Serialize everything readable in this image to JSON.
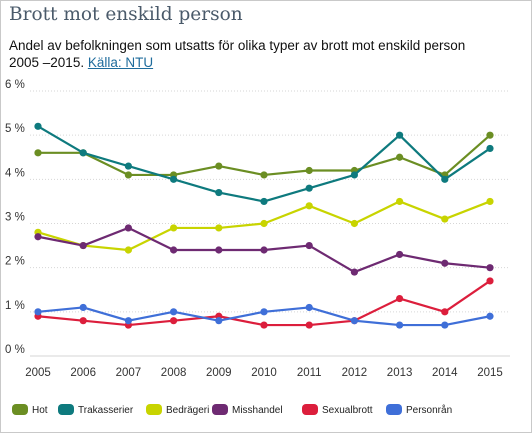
{
  "header": {
    "title": "Brott mot enskild person",
    "subtitle": "Andel av befolkningen som utsatts för olika typer av brott mot enskild person 2005 –2015.",
    "source_link": "Källa: NTU"
  },
  "chart_data": {
    "type": "line",
    "x": [
      2005,
      2006,
      2007,
      2008,
      2009,
      2010,
      2011,
      2012,
      2013,
      2014,
      2015
    ],
    "ylim": [
      0,
      6
    ],
    "yticks": [
      "0 %",
      "1 %",
      "2 %",
      "3 %",
      "4 %",
      "5 %",
      "6 %"
    ],
    "grid": true,
    "legend_position": "bottom",
    "series": [
      {
        "name": "Hot",
        "color": "#6b8e23",
        "values": [
          4.6,
          4.6,
          4.1,
          4.1,
          4.3,
          4.1,
          4.2,
          4.2,
          4.5,
          4.1,
          5.0
        ]
      },
      {
        "name": "Trakasserier",
        "color": "#0e7a7e",
        "values": [
          5.2,
          4.6,
          4.3,
          4.0,
          3.7,
          3.5,
          3.8,
          4.1,
          5.0,
          4.0,
          4.7
        ]
      },
      {
        "name": "Bedrägeri",
        "color": "#c8d400",
        "values": [
          2.8,
          2.5,
          2.4,
          2.9,
          2.9,
          3.0,
          3.4,
          3.0,
          3.5,
          3.1,
          3.5
        ]
      },
      {
        "name": "Misshandel",
        "color": "#6e2a72",
        "values": [
          2.7,
          2.5,
          2.9,
          2.4,
          2.4,
          2.4,
          2.5,
          1.9,
          2.3,
          2.1,
          2.0
        ]
      },
      {
        "name": "Sexualbrott",
        "color": "#dc1e3c",
        "values": [
          0.9,
          0.8,
          0.7,
          0.8,
          0.9,
          0.7,
          0.7,
          0.8,
          1.3,
          1.0,
          1.7
        ]
      },
      {
        "name": "Personrån",
        "color": "#3f6fd8",
        "values": [
          1.0,
          1.1,
          0.8,
          1.0,
          0.8,
          1.0,
          1.1,
          0.8,
          0.7,
          0.7,
          0.9
        ]
      }
    ]
  }
}
